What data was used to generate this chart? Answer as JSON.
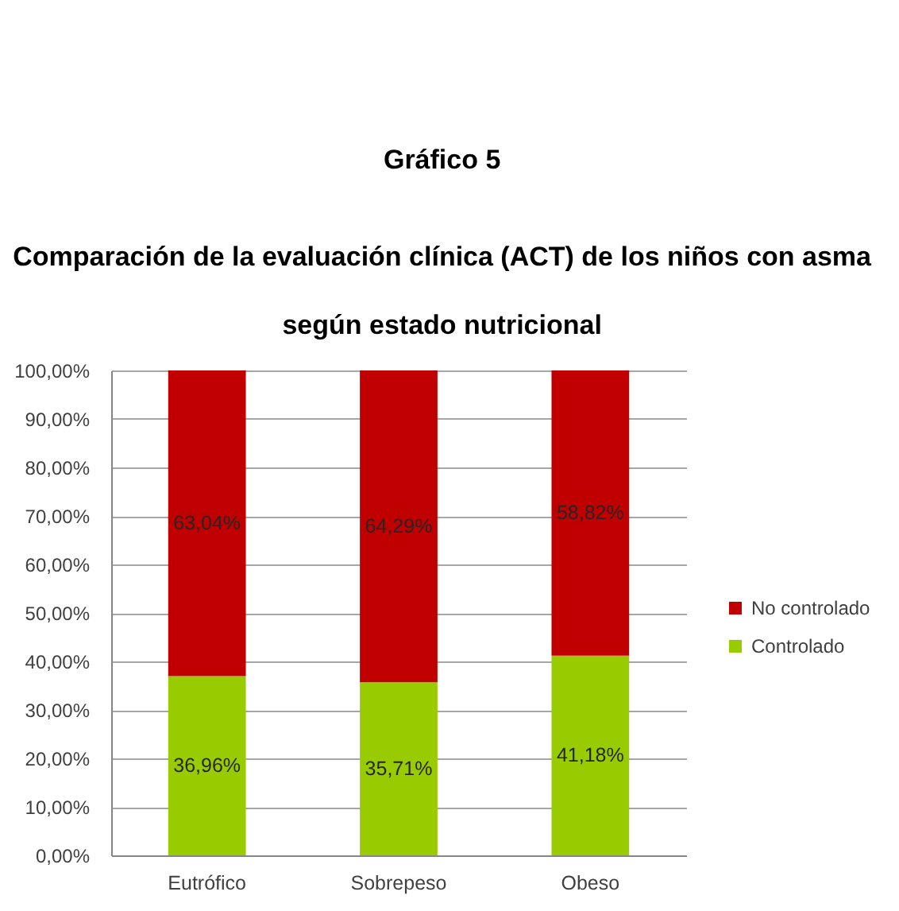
{
  "chart_data": {
    "type": "bar",
    "title": "Gráfico 5",
    "subtitle": "Comparación de la evaluación clínica (ACT) de los niños con asma según estado nutricional",
    "categories": [
      "Eutrófico",
      "Sobrepeso",
      "Obeso"
    ],
    "stacked": true,
    "series": [
      {
        "name": "Controlado",
        "color": "#99cc00",
        "values": [
          36.96,
          35.71,
          41.18
        ],
        "value_labels": [
          "36,96%",
          "35,71%",
          "41,18%"
        ]
      },
      {
        "name": "No controlado",
        "color": "#c00000",
        "values": [
          63.04,
          64.29,
          58.82
        ],
        "value_labels": [
          "63,04%",
          "64,29%",
          "58,82%"
        ]
      }
    ],
    "ylim": [
      0,
      100
    ],
    "yticks": [
      {
        "value": 0,
        "label": "0,00%"
      },
      {
        "value": 10,
        "label": "10,00%"
      },
      {
        "value": 20,
        "label": "20,00%"
      },
      {
        "value": 30,
        "label": "30,00%"
      },
      {
        "value": 40,
        "label": "40,00%"
      },
      {
        "value": 50,
        "label": "50,00%"
      },
      {
        "value": 60,
        "label": "60,00%"
      },
      {
        "value": 70,
        "label": "70,00%"
      },
      {
        "value": 80,
        "label": "80,00%"
      },
      {
        "value": 90,
        "label": "90,00%"
      },
      {
        "value": 100,
        "label": "100,00%"
      }
    ],
    "grid": "y",
    "legend": "right"
  }
}
